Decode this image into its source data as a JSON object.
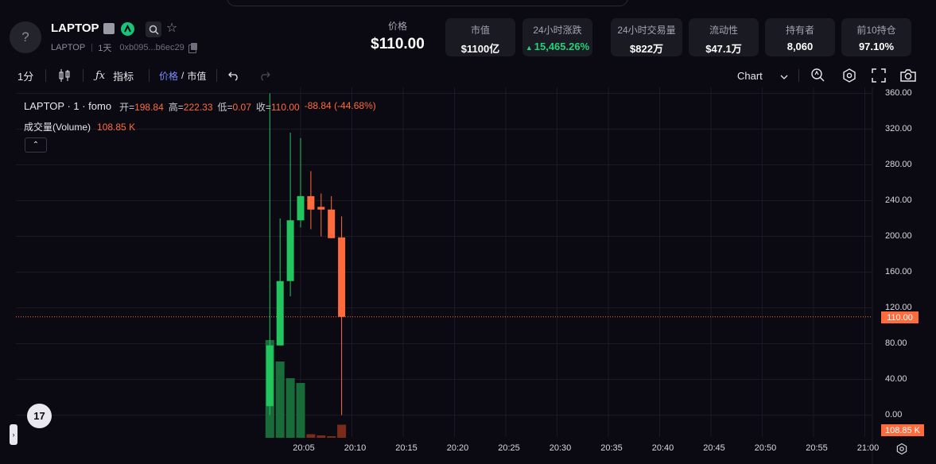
{
  "token": {
    "name": "LAPTOP",
    "symbol": "LAPTOP",
    "age": "1天",
    "address": "0xb095...b6ec29",
    "avatar_glyph": "?"
  },
  "price": {
    "label": "价格",
    "value": "$110.00"
  },
  "stats": [
    {
      "label": "市值",
      "value": "$1100亿"
    },
    {
      "label": "24小时涨跌",
      "value": "15,465.26%",
      "direction": "up"
    },
    {
      "label": "24小时交易量",
      "value": "$822万"
    },
    {
      "label": "流动性",
      "value": "$47.1万"
    },
    {
      "label": "持有者",
      "value": "8,060"
    },
    {
      "label": "前10持仓",
      "value": "97.10%"
    }
  ],
  "toolbar": {
    "interval": "1分",
    "indicators": "指标",
    "price_label": "价格",
    "slash": "/",
    "mcap_label": "市值",
    "chart_type": "Chart"
  },
  "legend": {
    "title": "LAPTOP · 1 · fomo",
    "open_key": "开=",
    "open": "198.84",
    "high_key": "高=",
    "high": "222.33",
    "low_key": "低=",
    "low": "0.07",
    "close_key": "收=",
    "close": "110.00",
    "change": "-88.84 (-44.68%)",
    "volume_label": "成交量(Volume)",
    "volume_value": "108.85 K",
    "collapse_glyph": "⌃"
  },
  "current_price_tag": "110.00",
  "volume_tag": "108.85 K",
  "tv_logo": "17",
  "colors": {
    "up": "#22c55e",
    "down": "#ff6b3d",
    "bg": "#0b0a12",
    "grid": "#1b1a24"
  },
  "chart_data": {
    "type": "candlestick",
    "title": "LAPTOP · 1 · fomo",
    "ylim": [
      0,
      360
    ],
    "yticks": [
      "360.00",
      "320.00",
      "280.00",
      "240.00",
      "200.00",
      "160.00",
      "120.00",
      "80.00",
      "40.00",
      "0.00"
    ],
    "xticks": [
      "20:05",
      "20:10",
      "20:15",
      "20:20",
      "20:25",
      "20:30",
      "20:35",
      "20:40",
      "20:45",
      "20:50",
      "20:55",
      "21:00"
    ],
    "candles": [
      {
        "time": "20:02",
        "open": 10,
        "high": 360,
        "low": 0.07,
        "close": 78
      },
      {
        "time": "20:03",
        "open": 78,
        "high": 220,
        "low": 78,
        "close": 150
      },
      {
        "time": "20:04",
        "open": 150,
        "high": 316,
        "low": 133,
        "close": 218
      },
      {
        "time": "20:05",
        "open": 218,
        "high": 310,
        "low": 210,
        "close": 245
      },
      {
        "time": "20:06",
        "open": 245,
        "high": 273,
        "low": 208,
        "close": 230
      },
      {
        "time": "20:07",
        "open": 233,
        "high": 248,
        "low": 200,
        "close": 230
      },
      {
        "time": "20:08",
        "open": 230,
        "high": 245,
        "low": 198,
        "close": 198
      },
      {
        "time": "20:09",
        "open": 198.84,
        "high": 222.33,
        "low": 0.07,
        "close": 110
      }
    ],
    "volume": [
      {
        "time": "20:02",
        "value": 0.82,
        "dir": "up"
      },
      {
        "time": "20:03",
        "value": 0.64,
        "dir": "up"
      },
      {
        "time": "20:04",
        "value": 0.5,
        "dir": "up"
      },
      {
        "time": "20:05",
        "value": 0.46,
        "dir": "up"
      },
      {
        "time": "20:06",
        "value": 0.03,
        "dir": "down"
      },
      {
        "time": "20:07",
        "value": 0.02,
        "dir": "down"
      },
      {
        "time": "20:08",
        "value": 0.01,
        "dir": "down"
      },
      {
        "time": "20:09",
        "value": 0.11,
        "dir": "down"
      }
    ],
    "current_price": 110
  }
}
